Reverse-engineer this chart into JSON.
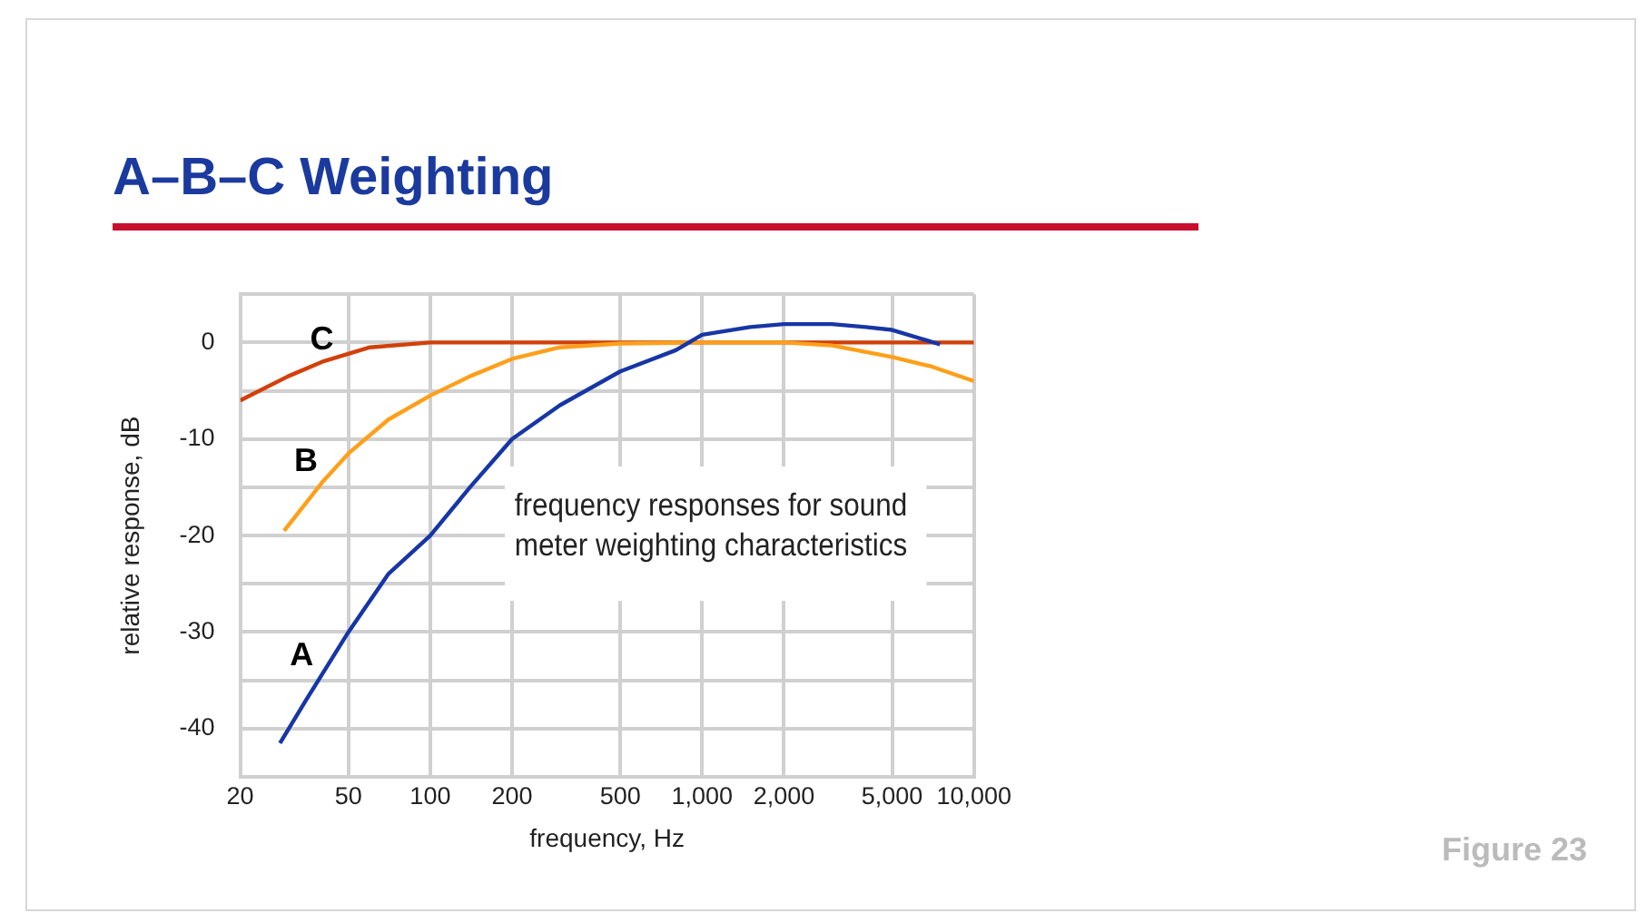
{
  "chart_data": {
    "type": "line",
    "title": "A–B–C Weighting",
    "xlabel": "frequency, Hz",
    "ylabel": "relative response, dB",
    "log": "x",
    "grid": true,
    "legend": false,
    "marker": "none",
    "line_style": "solid",
    "xlim": [
      20,
      10000
    ],
    "xticks": [
      20,
      50,
      100,
      200,
      500,
      {
        "value": 1000,
        "label": "1,000"
      },
      {
        "value": 2000,
        "label": "2,000"
      },
      {
        "value": 5000,
        "label": "5,000"
      },
      {
        "value": 10000,
        "label": "10,000"
      }
    ],
    "ylim": [
      -45,
      5
    ],
    "yticks": [
      {
        "value": -45,
        "label": null
      },
      -40,
      {
        "value": -35,
        "label": null
      },
      -30,
      {
        "value": -25,
        "label": null
      },
      -20,
      {
        "value": -15,
        "label": null
      },
      -10,
      {
        "value": -5,
        "label": null
      },
      0,
      {
        "value": 5,
        "label": null
      }
    ],
    "series": [
      {
        "name": "A",
        "color": "#1736a6",
        "x": [
          28,
          35,
          50,
          70,
          100,
          140,
          200,
          300,
          500,
          800,
          1000,
          1500,
          2000,
          3000,
          4000,
          5000,
          7500
        ],
        "values": [
          -41.5,
          -37,
          -30,
          -24,
          -20,
          -15,
          -10,
          -6.5,
          -3,
          -0.8,
          0.8,
          1.6,
          1.9,
          1.9,
          1.6,
          1.3,
          -0.2
        ]
      },
      {
        "name": "B",
        "color": "#ff9f1a",
        "x": [
          29,
          40,
          50,
          70,
          100,
          140,
          200,
          300,
          500,
          1000,
          2000,
          3000,
          5000,
          7000,
          10000
        ],
        "values": [
          -19.5,
          -14.5,
          -11.5,
          -8,
          -5.5,
          -3.5,
          -1.7,
          -0.5,
          -0.1,
          0,
          0,
          -0.3,
          -1.5,
          -2.5,
          -4
        ]
      },
      {
        "name": "C",
        "color": "#d2400a",
        "x": [
          20,
          30,
          40,
          60,
          100,
          200,
          500,
          1000,
          2000,
          5000,
          10000
        ],
        "values": [
          -6,
          -3.5,
          -2,
          -0.5,
          0,
          0,
          0,
          0,
          0,
          0,
          0
        ]
      }
    ],
    "annotations": [
      "frequency responses for sound meter weighting characteristics",
      "Figure 23"
    ]
  }
}
